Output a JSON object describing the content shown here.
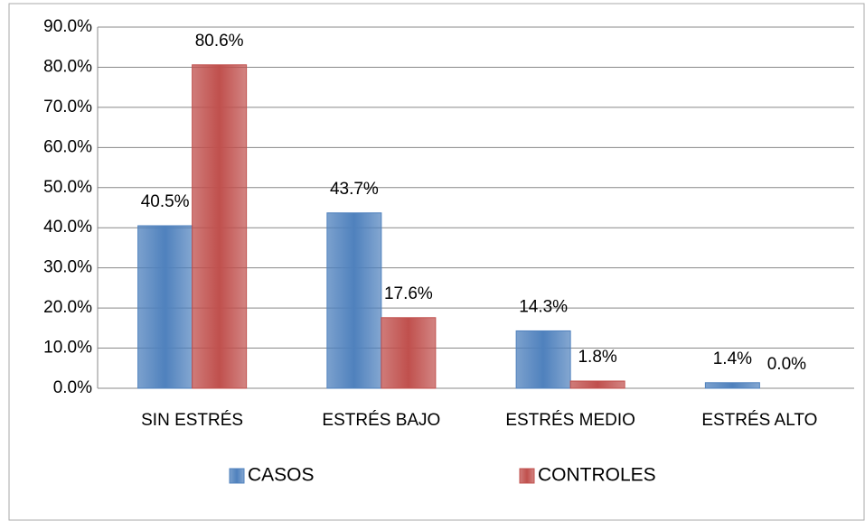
{
  "chart_data": {
    "type": "bar",
    "categories": [
      "SIN ESTRÉS",
      "ESTRÉS BAJO",
      "ESTRÉS MEDIO",
      "ESTRÉS ALTO"
    ],
    "series": [
      {
        "name": "CASOS",
        "color": "#4f81bd",
        "values": [
          40.5,
          43.7,
          14.3,
          1.4
        ],
        "value_labels": [
          "40.5%",
          "43.7%",
          "14.3%",
          "1.4%"
        ]
      },
      {
        "name": "CONTROLES",
        "color": "#c0504d",
        "values": [
          80.6,
          17.6,
          1.8,
          0.0
        ],
        "value_labels": [
          "80.6%",
          "17.6%",
          "1.8%",
          "0.0%"
        ]
      }
    ],
    "ylim": [
      0,
      90
    ],
    "yticks": [
      {
        "value": 0,
        "label": "0.0%"
      },
      {
        "value": 10,
        "label": "10.0%"
      },
      {
        "value": 20,
        "label": "20.0%"
      },
      {
        "value": 30,
        "label": "30.0%"
      },
      {
        "value": 40,
        "label": "40.0%"
      },
      {
        "value": 50,
        "label": "50.0%"
      },
      {
        "value": 60,
        "label": "60.0%"
      },
      {
        "value": 70,
        "label": "70.0%"
      },
      {
        "value": 80,
        "label": "80.0%"
      },
      {
        "value": 90,
        "label": "90.0%"
      }
    ],
    "grid": true,
    "legend": "bottom"
  }
}
